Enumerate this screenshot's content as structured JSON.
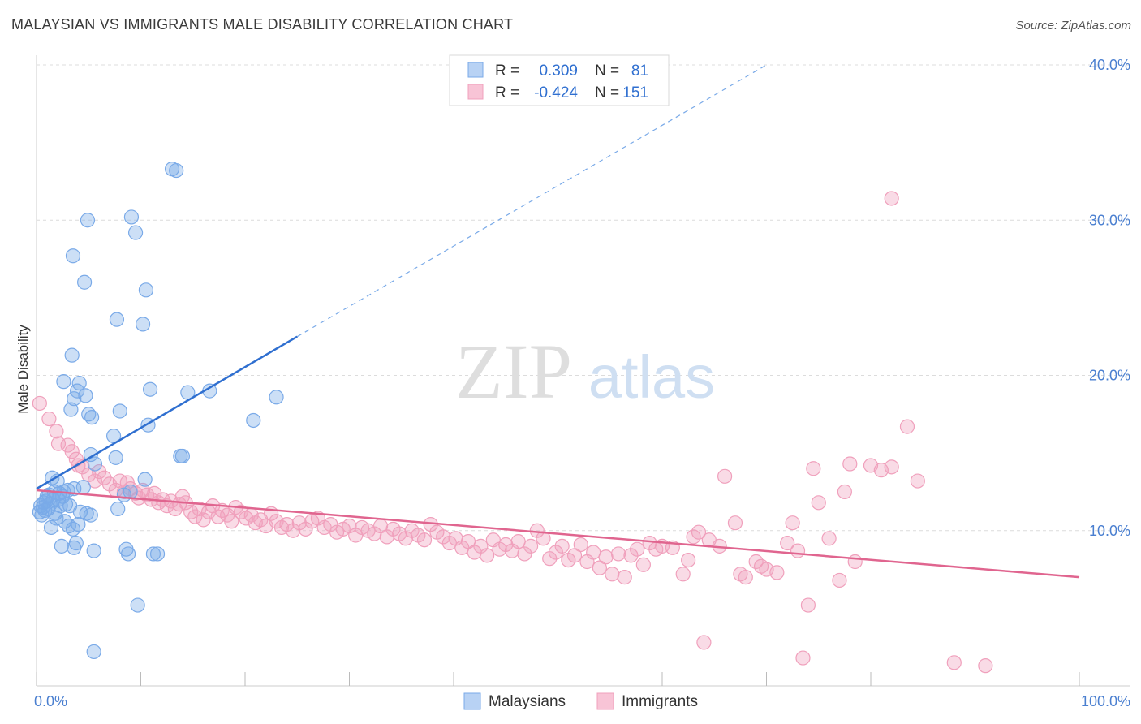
{
  "title": "MALAYSIAN VS IMMIGRANTS MALE DISABILITY CORRELATION CHART",
  "source": "Source: ZipAtlas.com",
  "watermark": {
    "zip": "ZIP",
    "atlas": "atlas"
  },
  "chart_data": {
    "type": "scatter",
    "xlabel": "",
    "ylabel": "Male Disability",
    "xlim": [
      0,
      100
    ],
    "ylim": [
      0,
      40
    ],
    "x_tick_labels": [
      "0.0%",
      "100.0%"
    ],
    "y_ticks": [
      10,
      20,
      30,
      40
    ],
    "y_tick_labels": [
      "10.0%",
      "20.0%",
      "30.0%",
      "40.0%"
    ],
    "grid": true,
    "legend_position": "top-center",
    "stats": [
      {
        "r_label": "R =",
        "r_value": "0.309",
        "n_label": "N =",
        "n_value": "81"
      },
      {
        "r_label": "R =",
        "r_value": "-0.424",
        "n_label": "N =",
        "n_value": "151"
      }
    ],
    "series": [
      {
        "name": "Malaysians",
        "color": "#7aaae8",
        "line_color": "#2f6fd0",
        "trend": {
          "x0": 0,
          "y0": 12.7,
          "x1": 25,
          "y1": 22.5,
          "dashed_to_x": 70,
          "dashed_to_y": 40
        },
        "points": [
          [
            0.3,
            11.2
          ],
          [
            0.4,
            11.6
          ],
          [
            0.5,
            11.0
          ],
          [
            0.6,
            11.5
          ],
          [
            0.7,
            11.8
          ],
          [
            0.8,
            11.3
          ],
          [
            0.9,
            11.9
          ],
          [
            1.0,
            12.2
          ],
          [
            1.1,
            11.4
          ],
          [
            1.2,
            12.3
          ],
          [
            1.3,
            11.7
          ],
          [
            1.4,
            10.2
          ],
          [
            1.5,
            13.4
          ],
          [
            1.6,
            12.0
          ],
          [
            1.7,
            12.5
          ],
          [
            1.8,
            11.1
          ],
          [
            1.9,
            10.8
          ],
          [
            2.0,
            13.2
          ],
          [
            2.1,
            12.0
          ],
          [
            2.2,
            12.4
          ],
          [
            2.3,
            11.6
          ],
          [
            2.4,
            9.0
          ],
          [
            2.5,
            12.2
          ],
          [
            2.6,
            12.5
          ],
          [
            2.7,
            10.6
          ],
          [
            2.8,
            11.7
          ],
          [
            3.0,
            12.6
          ],
          [
            3.1,
            10.3
          ],
          [
            3.2,
            11.6
          ],
          [
            3.5,
            10.1
          ],
          [
            3.6,
            8.9
          ],
          [
            3.8,
            9.2
          ],
          [
            4.0,
            10.4
          ],
          [
            4.2,
            11.2
          ],
          [
            4.5,
            12.8
          ],
          [
            4.8,
            11.1
          ],
          [
            5.2,
            11.0
          ],
          [
            2.6,
            19.6
          ],
          [
            3.3,
            17.8
          ],
          [
            3.4,
            21.3
          ],
          [
            3.6,
            18.5
          ],
          [
            3.9,
            19.0
          ],
          [
            4.1,
            19.5
          ],
          [
            4.7,
            18.7
          ],
          [
            3.5,
            27.7
          ],
          [
            4.6,
            26.0
          ],
          [
            4.9,
            30.0
          ],
          [
            5.0,
            17.5
          ],
          [
            5.5,
            8.7
          ],
          [
            5.3,
            17.3
          ],
          [
            5.6,
            14.3
          ],
          [
            5.2,
            14.9
          ],
          [
            7.4,
            16.1
          ],
          [
            7.6,
            14.7
          ],
          [
            7.7,
            23.6
          ],
          [
            7.8,
            11.4
          ],
          [
            8.0,
            17.7
          ],
          [
            8.4,
            12.3
          ],
          [
            8.6,
            8.8
          ],
          [
            9.0,
            12.5
          ],
          [
            8.8,
            8.5
          ],
          [
            9.1,
            30.2
          ],
          [
            9.5,
            29.2
          ],
          [
            9.7,
            5.2
          ],
          [
            10.2,
            23.3
          ],
          [
            10.4,
            13.3
          ],
          [
            10.5,
            25.5
          ],
          [
            10.7,
            16.8
          ],
          [
            10.9,
            19.1
          ],
          [
            11.2,
            8.5
          ],
          [
            11.6,
            8.5
          ],
          [
            13.0,
            33.3
          ],
          [
            13.4,
            33.2
          ],
          [
            13.8,
            14.8
          ],
          [
            14.0,
            14.8
          ],
          [
            14.5,
            18.9
          ],
          [
            16.6,
            19.0
          ],
          [
            20.8,
            17.1
          ],
          [
            23.0,
            18.6
          ],
          [
            3.6,
            12.7
          ],
          [
            5.5,
            2.2
          ]
        ]
      },
      {
        "name": "Immigrants",
        "color": "#f0a0bc",
        "line_color": "#e0658f",
        "trend": {
          "x0": 0,
          "y0": 12.6,
          "x1": 100,
          "y1": 7.0
        },
        "points": [
          [
            0.3,
            18.2
          ],
          [
            1.2,
            17.2
          ],
          [
            1.9,
            16.4
          ],
          [
            2.1,
            15.6
          ],
          [
            3.0,
            15.5
          ],
          [
            3.4,
            15.1
          ],
          [
            3.8,
            14.6
          ],
          [
            4.0,
            14.2
          ],
          [
            4.4,
            14.1
          ],
          [
            5.0,
            13.6
          ],
          [
            5.6,
            13.2
          ],
          [
            6.0,
            13.8
          ],
          [
            6.5,
            13.4
          ],
          [
            7.0,
            13.0
          ],
          [
            7.6,
            12.6
          ],
          [
            8.0,
            13.2
          ],
          [
            8.4,
            12.5
          ],
          [
            8.7,
            13.1
          ],
          [
            9.0,
            12.7
          ],
          [
            9.5,
            12.4
          ],
          [
            9.8,
            12.1
          ],
          [
            10.2,
            12.6
          ],
          [
            10.6,
            12.3
          ],
          [
            11.0,
            12.0
          ],
          [
            11.3,
            12.4
          ],
          [
            11.7,
            11.8
          ],
          [
            12.1,
            12.0
          ],
          [
            12.5,
            11.6
          ],
          [
            12.9,
            11.9
          ],
          [
            13.3,
            11.4
          ],
          [
            13.7,
            11.7
          ],
          [
            14.0,
            12.2
          ],
          [
            14.3,
            11.8
          ],
          [
            14.8,
            11.2
          ],
          [
            15.2,
            10.9
          ],
          [
            15.6,
            11.4
          ],
          [
            16.0,
            10.7
          ],
          [
            16.5,
            11.2
          ],
          [
            16.9,
            11.6
          ],
          [
            17.4,
            10.9
          ],
          [
            17.8,
            11.3
          ],
          [
            18.3,
            11.0
          ],
          [
            18.7,
            10.6
          ],
          [
            19.1,
            11.5
          ],
          [
            19.6,
            11.2
          ],
          [
            20.1,
            10.8
          ],
          [
            20.6,
            11.0
          ],
          [
            21.0,
            10.5
          ],
          [
            21.5,
            10.7
          ],
          [
            22.0,
            10.3
          ],
          [
            22.5,
            11.1
          ],
          [
            23.0,
            10.6
          ],
          [
            23.5,
            10.2
          ],
          [
            24.0,
            10.4
          ],
          [
            24.6,
            10.0
          ],
          [
            25.2,
            10.5
          ],
          [
            25.8,
            10.1
          ],
          [
            26.4,
            10.6
          ],
          [
            27.0,
            10.8
          ],
          [
            27.6,
            10.2
          ],
          [
            28.2,
            10.4
          ],
          [
            28.8,
            9.9
          ],
          [
            29.4,
            10.1
          ],
          [
            30.0,
            10.3
          ],
          [
            30.6,
            9.7
          ],
          [
            31.2,
            10.2
          ],
          [
            31.8,
            10.0
          ],
          [
            32.4,
            9.8
          ],
          [
            33.0,
            10.3
          ],
          [
            33.6,
            9.6
          ],
          [
            34.2,
            10.1
          ],
          [
            34.8,
            9.8
          ],
          [
            35.4,
            9.5
          ],
          [
            36.0,
            10.0
          ],
          [
            36.6,
            9.7
          ],
          [
            37.2,
            9.4
          ],
          [
            37.8,
            10.4
          ],
          [
            38.4,
            9.9
          ],
          [
            39.0,
            9.6
          ],
          [
            39.6,
            9.2
          ],
          [
            40.2,
            9.5
          ],
          [
            40.8,
            8.9
          ],
          [
            41.4,
            9.3
          ],
          [
            42.0,
            8.6
          ],
          [
            42.6,
            9.0
          ],
          [
            43.2,
            8.4
          ],
          [
            43.8,
            9.4
          ],
          [
            44.4,
            8.8
          ],
          [
            45.0,
            9.1
          ],
          [
            45.6,
            8.7
          ],
          [
            46.2,
            9.3
          ],
          [
            46.8,
            8.5
          ],
          [
            47.4,
            9.0
          ],
          [
            48.0,
            10.0
          ],
          [
            48.6,
            9.5
          ],
          [
            49.2,
            8.2
          ],
          [
            49.8,
            8.6
          ],
          [
            50.4,
            9.0
          ],
          [
            51.0,
            8.1
          ],
          [
            51.6,
            8.4
          ],
          [
            52.2,
            9.1
          ],
          [
            52.8,
            8.0
          ],
          [
            53.4,
            8.6
          ],
          [
            54.0,
            7.6
          ],
          [
            54.6,
            8.3
          ],
          [
            55.2,
            7.2
          ],
          [
            55.8,
            8.5
          ],
          [
            56.4,
            7.0
          ],
          [
            57.0,
            8.4
          ],
          [
            57.6,
            8.8
          ],
          [
            58.2,
            7.8
          ],
          [
            58.8,
            9.2
          ],
          [
            59.4,
            8.8
          ],
          [
            60.0,
            9.0
          ],
          [
            61.0,
            8.9
          ],
          [
            62.0,
            7.2
          ],
          [
            62.5,
            8.1
          ],
          [
            63.0,
            9.6
          ],
          [
            63.5,
            9.9
          ],
          [
            64.5,
            9.4
          ],
          [
            65.5,
            9.0
          ],
          [
            66.0,
            13.5
          ],
          [
            67.0,
            10.5
          ],
          [
            67.5,
            7.2
          ],
          [
            68.0,
            7.0
          ],
          [
            69.0,
            8.0
          ],
          [
            69.5,
            7.7
          ],
          [
            70.0,
            7.5
          ],
          [
            71.0,
            7.3
          ],
          [
            72.0,
            9.2
          ],
          [
            72.5,
            10.5
          ],
          [
            73.0,
            8.7
          ],
          [
            74.0,
            5.2
          ],
          [
            75.0,
            11.8
          ],
          [
            76.0,
            9.5
          ],
          [
            77.0,
            6.8
          ],
          [
            77.5,
            12.5
          ],
          [
            78.0,
            14.3
          ],
          [
            78.5,
            8.0
          ],
          [
            80.0,
            14.2
          ],
          [
            81.0,
            13.9
          ],
          [
            82.0,
            31.4
          ],
          [
            83.5,
            16.7
          ],
          [
            84.5,
            13.2
          ],
          [
            74.5,
            14.0
          ],
          [
            64.0,
            2.8
          ],
          [
            73.5,
            1.8
          ],
          [
            88.0,
            1.5
          ],
          [
            91.0,
            1.3
          ],
          [
            82.0,
            14.1
          ]
        ]
      }
    ]
  }
}
